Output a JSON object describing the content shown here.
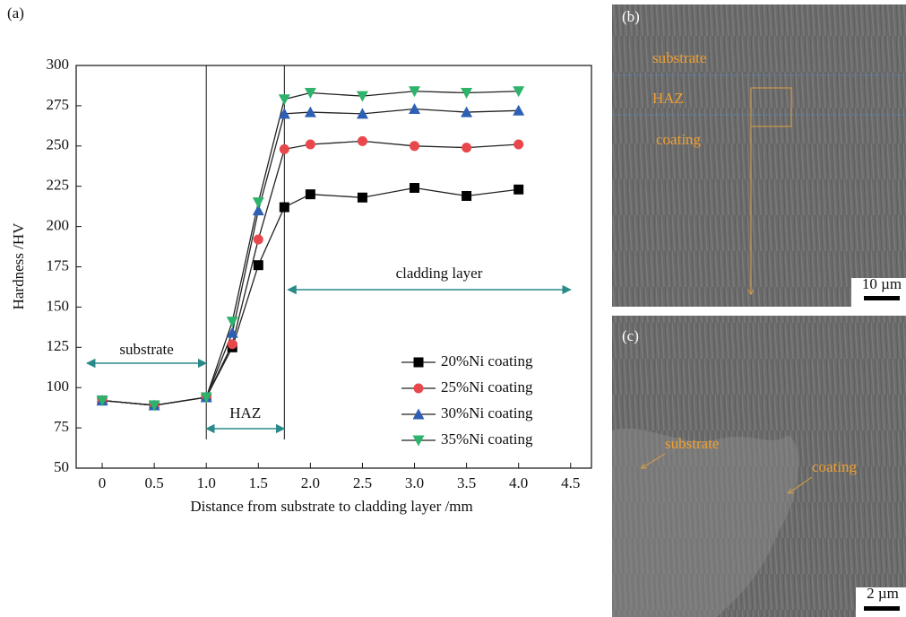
{
  "chart_data": {
    "type": "line",
    "panel_label": "(a)",
    "xlabel": "Distance from substrate to cladding layer /mm",
    "ylabel": "Hardness /HV",
    "x": [
      0,
      0.5,
      1.0,
      1.25,
      1.5,
      1.75,
      2.0,
      2.5,
      3.0,
      3.5,
      4.0
    ],
    "series": [
      {
        "name": "20%Ni coating",
        "color": "#000000",
        "marker": "square",
        "values": [
          92,
          89,
          94,
          125,
          176,
          212,
          220,
          218,
          224,
          219,
          223
        ]
      },
      {
        "name": "25%Ni coating",
        "color": "#e8474b",
        "marker": "circle",
        "values": [
          92,
          89,
          94,
          127,
          192,
          248,
          251,
          253,
          250,
          249,
          251
        ]
      },
      {
        "name": "30%Ni coating",
        "color": "#2d5fb5",
        "marker": "triangle-up",
        "values": [
          92,
          89,
          94,
          134,
          210,
          270,
          271,
          270,
          273,
          271,
          272
        ]
      },
      {
        "name": "35%Ni coating",
        "color": "#2db36b",
        "marker": "triangle-down",
        "values": [
          92,
          89,
          94,
          141,
          215,
          279,
          283,
          281,
          284,
          283,
          284
        ]
      }
    ],
    "vlines": [
      1.0,
      1.75
    ],
    "annotations": [
      "substrate",
      "HAZ",
      "cladding layer"
    ],
    "xlim": [
      -0.25,
      4.7
    ],
    "xticks": [
      {
        "value": 0,
        "label": "0"
      },
      {
        "value": 0.5,
        "label": "0.5"
      },
      {
        "value": 1.0,
        "label": "1.0"
      },
      {
        "value": 1.5,
        "label": "1.5"
      },
      {
        "value": 2.0,
        "label": "2.0"
      },
      {
        "value": 2.5,
        "label": "2.5"
      },
      {
        "value": 3.0,
        "label": "3.0"
      },
      {
        "value": 3.5,
        "label": "3.5"
      },
      {
        "value": 4.0,
        "label": "4.0"
      },
      {
        "value": 4.5,
        "label": "4.5"
      }
    ],
    "ylim": [
      50,
      300
    ],
    "yticks": [
      50,
      75,
      100,
      125,
      150,
      175,
      200,
      225,
      250,
      275,
      300
    ],
    "legend": "lower right"
  },
  "panels": [
    {
      "label": "(b)",
      "texts": [
        "substrate",
        "HAZ",
        "coating"
      ],
      "scale_bar": "10 µm"
    },
    {
      "label": "(c)",
      "texts": [
        "substrate",
        "coating"
      ],
      "scale_bar": "2 µm"
    }
  ]
}
